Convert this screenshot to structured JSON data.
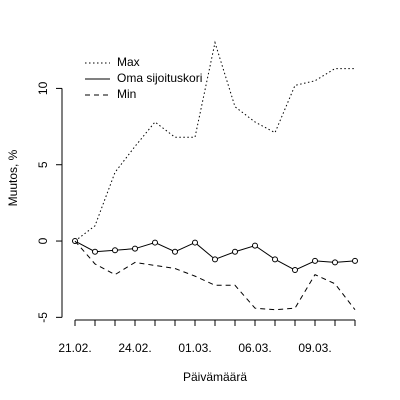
{
  "chart_data": {
    "type": "line",
    "x_label": "Päivämäärä",
    "y_label": "Muutos, %",
    "categories": [
      "21.02.",
      null,
      null,
      "24.02.",
      null,
      null,
      "01.03.",
      null,
      null,
      "06.03.",
      null,
      null,
      "09.03.",
      null,
      null
    ],
    "series": [
      {
        "name": "Max",
        "color": "#000000",
        "dash": "dotted",
        "markers": false,
        "values": [
          0,
          1.0,
          4.5,
          6.2,
          7.8,
          6.8,
          6.8,
          13.0,
          8.8,
          7.8,
          7.1,
          10.2,
          10.5,
          11.3,
          11.3
        ]
      },
      {
        "name": "Oma sijoituskori",
        "color": "#000000",
        "dash": "solid",
        "markers": true,
        "values": [
          0,
          -0.7,
          -0.6,
          -0.5,
          -0.1,
          -0.7,
          -0.1,
          -1.2,
          -0.7,
          -0.3,
          -1.2,
          -1.9,
          -1.3,
          -1.4,
          -1.3
        ]
      },
      {
        "name": "Min",
        "color": "#000000",
        "dash": "dashed",
        "markers": false,
        "values": [
          0,
          -1.5,
          -2.2,
          -1.4,
          -1.6,
          -1.8,
          -2.3,
          -2.9,
          -2.9,
          -4.4,
          -4.5,
          -4.4,
          -2.2,
          -2.8,
          -4.5
        ]
      }
    ],
    "ylim": [
      -5.2,
      13.5
    ],
    "yticks": [
      -5,
      0,
      5,
      10
    ],
    "legend": "top-left",
    "grid": false
  }
}
